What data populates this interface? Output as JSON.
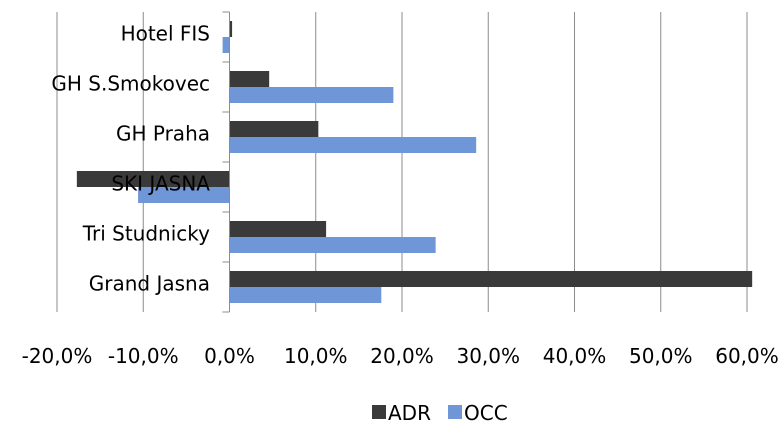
{
  "chart_data": {
    "type": "bar",
    "orientation": "horizontal",
    "categories": [
      "Grand Jasna",
      "Tri Studnicky",
      "SKI JASNA",
      "GH Praha",
      "GH S.Smokovec",
      "Hotel FIS"
    ],
    "series": [
      {
        "name": "ADR",
        "color": "#3a3a3a",
        "values": [
          60.6,
          11.2,
          -17.7,
          10.3,
          4.6,
          0.3
        ]
      },
      {
        "name": "OCC",
        "color": "#6f97d8",
        "values": [
          17.6,
          23.9,
          -10.6,
          28.6,
          19.0,
          -0.8
        ]
      }
    ],
    "xlim": [
      -20,
      60
    ],
    "x_ticks": [
      "-20,0%",
      "-10,0%",
      "0,0%",
      "10,0%",
      "20,0%",
      "30,0%",
      "40,0%",
      "50,0%",
      "60,0%"
    ],
    "grid": "vertical",
    "legend_position": "bottom",
    "title": "",
    "xlabel": "",
    "ylabel": ""
  }
}
